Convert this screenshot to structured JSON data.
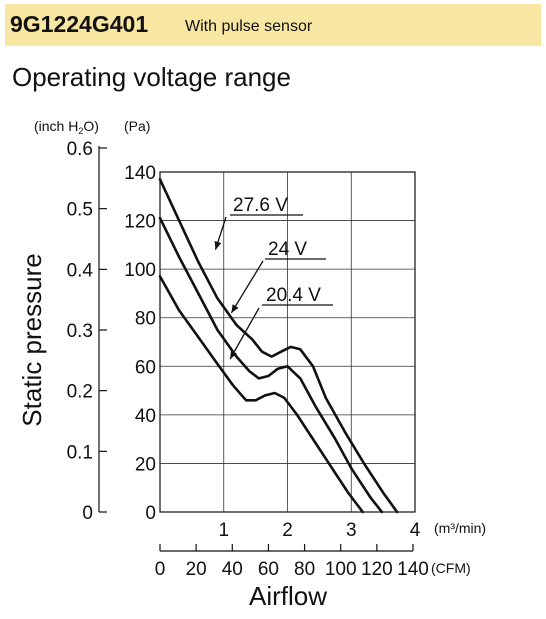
{
  "header": {
    "model": "9G1224G401",
    "description": "With pulse sensor",
    "background": "#f7e7a2"
  },
  "section_title": "Operating voltage range",
  "chart_data": {
    "type": "line",
    "xlabel": "Airflow",
    "ylabel": "Static pressure",
    "x_unit": "(m³/min)",
    "x2_unit": "(CFM)",
    "y_unit": "(Pa)",
    "y2_unit_prefix": "(inch H",
    "y2_unit_sub": "2",
    "y2_unit_suffix": "O)",
    "xlim": [
      0,
      4
    ],
    "ylim": [
      0,
      140
    ],
    "x_ticks": [
      "1",
      "2",
      "3",
      "4"
    ],
    "y_ticks": [
      "0",
      "20",
      "40",
      "60",
      "80",
      "100",
      "120",
      "140"
    ],
    "x2_ticks": [
      "0",
      "20",
      "40",
      "60",
      "80",
      "100",
      "120",
      "140"
    ],
    "y2_ticks": [
      "0",
      "0.1",
      "0.2",
      "0.3",
      "0.4",
      "0.5",
      "0.6"
    ],
    "grid": true,
    "series": [
      {
        "name": "27.6 V",
        "points": [
          [
            0,
            137
          ],
          [
            0.3,
            120
          ],
          [
            0.6,
            103
          ],
          [
            0.9,
            88
          ],
          [
            1.2,
            77
          ],
          [
            1.45,
            71
          ],
          [
            1.6,
            66
          ],
          [
            1.75,
            64
          ],
          [
            1.9,
            66
          ],
          [
            2.05,
            68
          ],
          [
            2.2,
            67
          ],
          [
            2.4,
            60
          ],
          [
            2.6,
            47
          ],
          [
            2.9,
            33
          ],
          [
            3.2,
            20
          ],
          [
            3.5,
            8
          ],
          [
            3.72,
            0
          ]
        ]
      },
      {
        "name": "24 V",
        "points": [
          [
            0,
            121
          ],
          [
            0.3,
            105
          ],
          [
            0.6,
            90
          ],
          [
            0.9,
            75
          ],
          [
            1.2,
            64
          ],
          [
            1.4,
            58
          ],
          [
            1.55,
            55
          ],
          [
            1.7,
            56
          ],
          [
            1.85,
            59
          ],
          [
            2.0,
            60
          ],
          [
            2.2,
            55
          ],
          [
            2.45,
            43
          ],
          [
            2.75,
            30
          ],
          [
            3.0,
            18
          ],
          [
            3.3,
            6
          ],
          [
            3.48,
            0
          ]
        ]
      },
      {
        "name": "20.4 V",
        "points": [
          [
            0,
            97
          ],
          [
            0.3,
            83
          ],
          [
            0.6,
            72
          ],
          [
            0.9,
            61
          ],
          [
            1.15,
            52
          ],
          [
            1.35,
            46
          ],
          [
            1.5,
            46
          ],
          [
            1.65,
            48
          ],
          [
            1.8,
            49
          ],
          [
            1.95,
            47
          ],
          [
            2.15,
            40
          ],
          [
            2.4,
            30
          ],
          [
            2.7,
            18
          ],
          [
            2.95,
            8
          ],
          [
            3.18,
            0
          ]
        ]
      }
    ],
    "annotations": [
      {
        "text": "27.6 V",
        "target": [
          0.87,
          108
        ]
      },
      {
        "text": "24 V",
        "target": [
          1.12,
          82
        ]
      },
      {
        "text": "20.4 V",
        "target": [
          1.1,
          63
        ]
      }
    ]
  }
}
